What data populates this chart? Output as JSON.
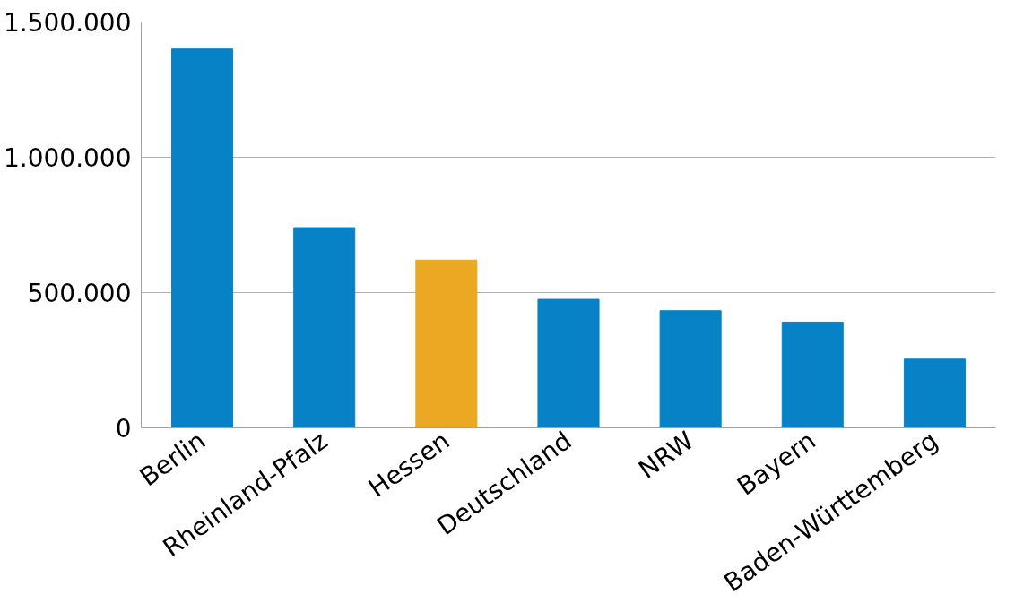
{
  "chart_data": {
    "type": "bar",
    "categories": [
      "Berlin",
      "Rheinland-Pfalz",
      "Hessen",
      "Deutschland",
      "NRW",
      "Bayern",
      "Baden-Württemberg"
    ],
    "values": [
      1400000,
      740000,
      620000,
      475000,
      433000,
      391000,
      254000
    ],
    "colors": [
      "#0882c6",
      "#0882c6",
      "#eca822",
      "#0882c6",
      "#0882c6",
      "#0882c6",
      "#0882c6"
    ],
    "ylim": [
      0,
      1500000
    ],
    "yticks": [
      {
        "value": 0,
        "label": "0"
      },
      {
        "value": 500000,
        "label": "500.000"
      },
      {
        "value": 1000000,
        "label": "1.000.000"
      },
      {
        "value": 1500000,
        "label": "1.500.000"
      }
    ],
    "grid": "y"
  }
}
